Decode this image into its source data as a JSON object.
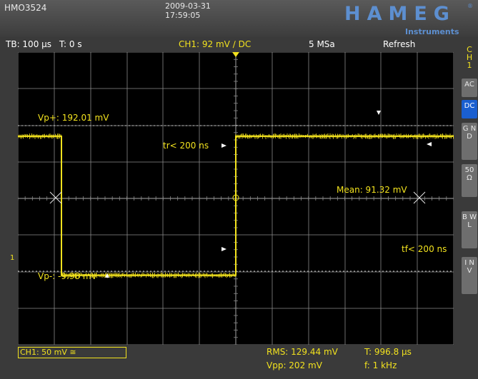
{
  "header": {
    "model": "HMO3524",
    "date": "2009-03-31",
    "time": "17:59:05",
    "brand": "HAMEG",
    "brand_sub": "Instruments",
    "brand_reg": "®"
  },
  "status": {
    "timebase": "TB: 100 µs",
    "trigger_time": "T: 0 s",
    "channel_trigger": "CH1: 92 mV",
    "trigger_slope_coupling": "∕ DC",
    "sample_rate": "5 MSa",
    "mode": "Refresh"
  },
  "sidebar": {
    "channel": [
      "C",
      "H",
      "1"
    ],
    "buttons": [
      {
        "label": "AC",
        "active": false
      },
      {
        "label": "DC",
        "active": true
      },
      {
        "label": "G N D",
        "active": false
      },
      {
        "label": "50 Ω",
        "active": false
      },
      {
        "label": "B W L",
        "active": false
      },
      {
        "label": "I N V",
        "active": false
      }
    ]
  },
  "screen_labels": {
    "vp_plus": "Vp+: 192.01 mV",
    "vp_minus": "Vp-: -9.98 mV",
    "rise_time": "tr< 200 ns",
    "fall_time": "tf< 200 ns",
    "mean": "Mean: 91.32 mV",
    "channel_marker": "1"
  },
  "bottom": {
    "channel_setting": "CH1: 50 mV ≅",
    "rms": "RMS: 129.44 mV",
    "vpp": "Vpp: 202 mV",
    "period": "T: 996.8 µs",
    "frequency": "f: 1 kHz"
  },
  "colors": {
    "trace": "#f2e21e",
    "grid": "#8a8a8a",
    "active_button": "#1a5fd0",
    "brand": "#5d8fd0"
  },
  "chart_data": {
    "type": "line",
    "x_unit": "µs",
    "y_unit": "mV",
    "xlim": [
      -500,
      500
    ],
    "ylim": [
      -100,
      300
    ],
    "series": [
      {
        "x": [
          -500,
          -400,
          -400,
          0,
          0,
          500
        ],
        "y": [
          185,
          185,
          -5,
          -5,
          185,
          185
        ]
      }
    ]
  }
}
